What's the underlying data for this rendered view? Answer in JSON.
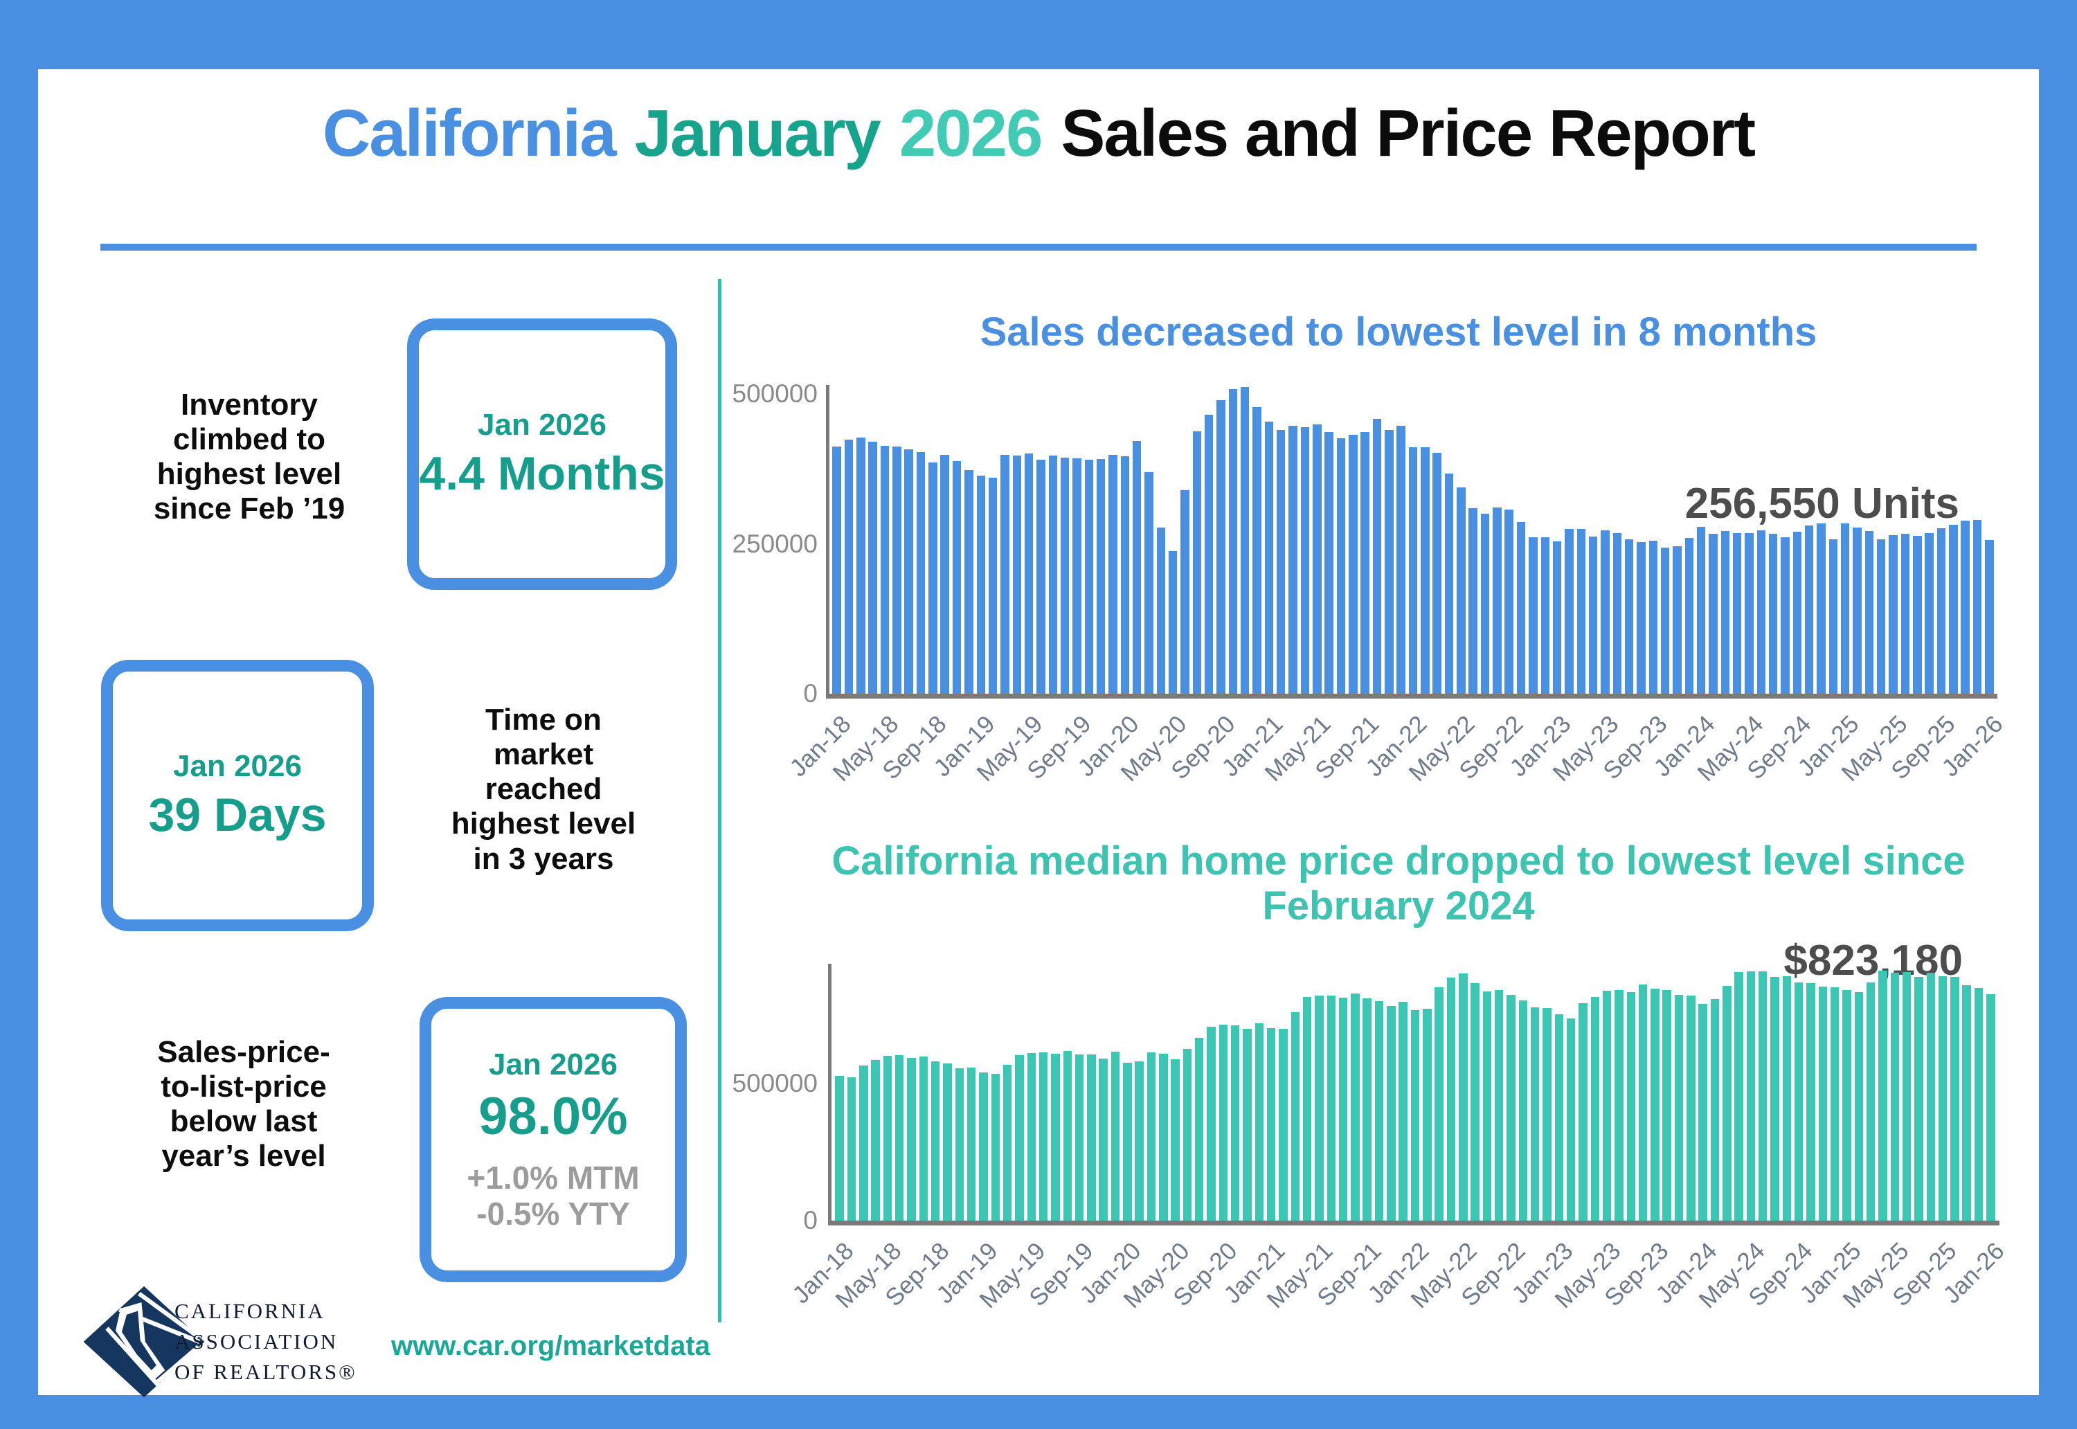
{
  "title": {
    "location": "California",
    "month": "January",
    "year": "2026",
    "rest": "Sales and Price Report"
  },
  "stats": [
    {
      "caption": "Inventory\nclimbed to\nhighest level\nsince Feb ’19",
      "period": "Jan 2026",
      "value": "4.4 Months"
    },
    {
      "caption": "Time on\nmarket\nreached\nhighest level\nin 3 years",
      "period": "Jan 2026",
      "value": "39 Days"
    },
    {
      "caption": "Sales-price-\nto-list-price\nbelow last\nyear’s level",
      "period": "Jan 2026",
      "value": "98.0%",
      "sub_mtm": "+1.0% MTM",
      "sub_yty": "-0.5% YTY"
    }
  ],
  "footer": {
    "logo_line1": "CALIFORNIA",
    "logo_line2": "ASSOCIATION",
    "logo_line3": "OF REALTORS®",
    "url": "www.car.org/marketdata"
  },
  "colors": {
    "frame_blue": "#4a90e2",
    "sales_bar_blue": "#4a90e2",
    "price_bar_teal": "#3cc6b4",
    "title_month_teal": "#16a58c",
    "title_year_teal": "#41cbb5",
    "stat_teal": "#169e8c",
    "divider_teal": "#2bc0ad",
    "annotation_gray": "#4d4d4d",
    "axis_gray": "#7a7a7a",
    "tick_label_gray": "#6e7b8a",
    "sub_stat_gray": "#9c9c9c",
    "logo_navy": "#15365f"
  },
  "chart_data": [
    {
      "type": "bar",
      "title": "Sales decreased to lowest level in 8 months",
      "annotation": "256,550 Units",
      "xlabel": "",
      "ylabel": "",
      "grid": false,
      "legend": "none",
      "bar_color": "#4a90e2",
      "ylim": [
        0,
        515000
      ],
      "y_ticks": [
        {
          "label": "0",
          "value": 0
        },
        {
          "label": "250000",
          "value": 250000
        },
        {
          "label": "500000",
          "value": 500000
        }
      ],
      "tick_every": 4,
      "x_tick_labels": [
        "Jan-18",
        "May-18",
        "Sep-18",
        "Jan-19",
        "May-19",
        "Sep-19",
        "Jan-20",
        "May-20",
        "Sep-20",
        "Jan-21",
        "May-21",
        "Sep-21",
        "Jan-22",
        "May-22",
        "Sep-22",
        "Jan-23",
        "May-23",
        "Sep-23",
        "Jan-24",
        "May-24",
        "Sep-24",
        "Jan-25",
        "May-25",
        "Sep-25",
        "Jan-26"
      ],
      "categories": [
        "Jan-18",
        "Feb-18",
        "Mar-18",
        "Apr-18",
        "May-18",
        "Jun-18",
        "Jul-18",
        "Aug-18",
        "Sep-18",
        "Oct-18",
        "Nov-18",
        "Dec-18",
        "Jan-19",
        "Feb-19",
        "Mar-19",
        "Apr-19",
        "May-19",
        "Jun-19",
        "Jul-19",
        "Aug-19",
        "Sep-19",
        "Oct-19",
        "Nov-19",
        "Dec-19",
        "Jan-20",
        "Feb-20",
        "Mar-20",
        "Apr-20",
        "May-20",
        "Jun-20",
        "Jul-20",
        "Aug-20",
        "Sep-20",
        "Oct-20",
        "Nov-20",
        "Dec-20",
        "Jan-21",
        "Feb-21",
        "Mar-21",
        "Apr-21",
        "May-21",
        "Jun-21",
        "Jul-21",
        "Aug-21",
        "Sep-21",
        "Oct-21",
        "Nov-21",
        "Dec-21",
        "Jan-22",
        "Feb-22",
        "Mar-22",
        "Apr-22",
        "May-22",
        "Jun-22",
        "Jul-22",
        "Aug-22",
        "Sep-22",
        "Oct-22",
        "Nov-22",
        "Dec-22",
        "Jan-23",
        "Feb-23",
        "Mar-23",
        "Apr-23",
        "May-23",
        "Jun-23",
        "Jul-23",
        "Aug-23",
        "Sep-23",
        "Oct-23",
        "Nov-23",
        "Dec-23",
        "Jan-24",
        "Feb-24",
        "Mar-24",
        "Apr-24",
        "May-24",
        "Jun-24",
        "Jul-24",
        "Aug-24",
        "Sep-24",
        "Oct-24",
        "Nov-24",
        "Dec-24",
        "Jan-25",
        "Feb-25",
        "Mar-25",
        "Apr-25",
        "May-25",
        "Jun-25",
        "Jul-25",
        "Aug-25",
        "Sep-25",
        "Oct-25",
        "Nov-25",
        "Dec-25",
        "Jan-26"
      ],
      "values": [
        412300,
        423900,
        427100,
        420800,
        413200,
        412400,
        407300,
        402900,
        385400,
        398700,
        388100,
        372800,
        363300,
        360000,
        397900,
        396800,
        400900,
        389800,
        397300,
        393500,
        392100,
        390700,
        392000,
        398000,
        395700,
        421000,
        369900,
        277400,
        238000,
        339300,
        437900,
        465400,
        489500,
        508600,
        511000,
        477800,
        454200,
        440300,
        446900,
        444500,
        449600,
        436700,
        425900,
        431800,
        436800,
        459000,
        440000,
        447100,
        411300,
        410800,
        401700,
        367000,
        344200,
        309400,
        299900,
        310200,
        307300,
        286100,
        261000,
        260800,
        254100,
        274700,
        274400,
        261700,
        272300,
        267600,
        257200,
        253400,
        255000,
        243300,
        246200,
        259500,
        278300,
        267000,
        271300,
        268200,
        268400,
        273100,
        266900,
        261200,
        270700,
        280800,
        283900,
        257900,
        283600,
        277000,
        271100,
        258000,
        264900,
        266200,
        263000,
        267700,
        275600,
        281700,
        288500,
        290000,
        256550
      ]
    },
    {
      "type": "bar",
      "title": "California median home price dropped to lowest level since February 2024",
      "annotation": "$823,180",
      "xlabel": "",
      "ylabel": "",
      "grid": false,
      "legend": "none",
      "bar_color": "#3cc6b4",
      "ylim": [
        0,
        927500
      ],
      "y_ticks": [
        {
          "label": "0",
          "value": 0
        },
        {
          "label": "500000",
          "value": 500000
        }
      ],
      "tick_every": 4,
      "x_tick_labels": [
        "Jan-18",
        "May-18",
        "Sep-18",
        "Jan-19",
        "May-19",
        "Sep-19",
        "Jan-20",
        "May-20",
        "Sep-20",
        "Jan-21",
        "May-21",
        "Sep-21",
        "Jan-22",
        "May-22",
        "Sep-22",
        "Jan-23",
        "May-23",
        "Sep-23",
        "Jan-24",
        "May-24",
        "Sep-24",
        "Jan-25",
        "May-25",
        "Sep-25",
        "Jan-26"
      ],
      "categories": [
        "Jan-18",
        "Feb-18",
        "Mar-18",
        "Apr-18",
        "May-18",
        "Jun-18",
        "Jul-18",
        "Aug-18",
        "Sep-18",
        "Oct-18",
        "Nov-18",
        "Dec-18",
        "Jan-19",
        "Feb-19",
        "Mar-19",
        "Apr-19",
        "May-19",
        "Jun-19",
        "Jul-19",
        "Aug-19",
        "Sep-19",
        "Oct-19",
        "Nov-19",
        "Dec-19",
        "Jan-20",
        "Feb-20",
        "Mar-20",
        "Apr-20",
        "May-20",
        "Jun-20",
        "Jul-20",
        "Aug-20",
        "Sep-20",
        "Oct-20",
        "Nov-20",
        "Dec-20",
        "Jan-21",
        "Feb-21",
        "Mar-21",
        "Apr-21",
        "May-21",
        "Jun-21",
        "Jul-21",
        "Aug-21",
        "Sep-21",
        "Oct-21",
        "Nov-21",
        "Dec-21",
        "Jan-22",
        "Feb-22",
        "Mar-22",
        "Apr-22",
        "May-22",
        "Jun-22",
        "Jul-22",
        "Aug-22",
        "Sep-22",
        "Oct-22",
        "Nov-22",
        "Dec-22",
        "Jan-23",
        "Feb-23",
        "Mar-23",
        "Apr-23",
        "May-23",
        "Jun-23",
        "Jul-23",
        "Aug-23",
        "Sep-23",
        "Oct-23",
        "Nov-23",
        "Dec-23",
        "Jan-24",
        "Feb-24",
        "Mar-24",
        "Apr-24",
        "May-24",
        "Jun-24",
        "Jul-24",
        "Aug-24",
        "Sep-24",
        "Oct-24",
        "Nov-24",
        "Dec-24",
        "Jan-25",
        "Feb-25",
        "Mar-25",
        "Apr-25",
        "May-25",
        "Jun-25",
        "Jul-25",
        "Aug-25",
        "Sep-25",
        "Oct-25",
        "Nov-25",
        "Dec-25",
        "Jan-26"
      ],
      "values": [
        527800,
        522000,
        564830,
        584460,
        600860,
        602760,
        591460,
        596410,
        578850,
        572000,
        554760,
        557600,
        538690,
        534140,
        565880,
        602920,
        611190,
        611420,
        607990,
        617410,
        605680,
        605280,
        589770,
        615090,
        575160,
        578690,
        612440,
        606410,
        588070,
        626170,
        666320,
        706900,
        712430,
        711300,
        699000,
        717930,
        699890,
        699000,
        758990,
        813980,
        818260,
        819630,
        811170,
        827940,
        808890,
        798440,
        782480,
        796570,
        765610,
        771270,
        849080,
        884890,
        898980,
        863790,
        833910,
        839460,
        821680,
        801190,
        777500,
        774580,
        751330,
        735480,
        791490,
        815340,
        836110,
        838260,
        832340,
        859800,
        843340,
        840360,
        822200,
        819740,
        788940,
        806490,
        854490,
        904210,
        908040,
        907800,
        886560,
        888740,
        868150,
        865440,
        852880,
        849460,
        838520,
        832000,
        868150,
        908990,
        903000,
        905680,
        887500,
        901430,
        890650,
        886300,
        858000,
        846200,
        823180
      ]
    }
  ]
}
